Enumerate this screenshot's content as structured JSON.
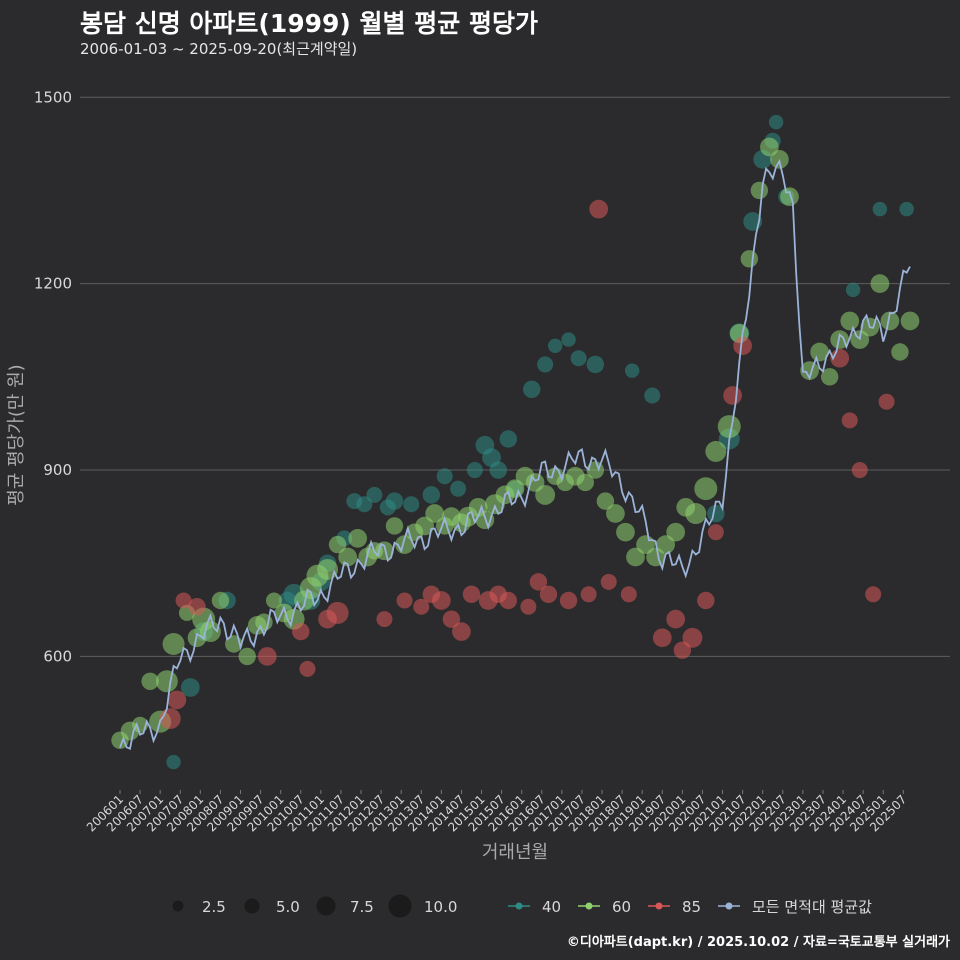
{
  "title": "봉담 신명 아파트(1999) 월별 평균 평당가",
  "subtitle": "2006-01-03 ~ 2025-09-20(최근계약일)",
  "caption": "©디아파트(dapt.kr) / 2025.10.02 / 자료=국토교통부 실거래가",
  "colors": {
    "background": "#2b2b2d",
    "grid": "#5e5e5e",
    "area_40": "#2e8b84",
    "area_60": "#8fd16f",
    "area_85": "#d95757",
    "average_line": "#9bb3d8"
  },
  "chart_data": {
    "type": "scatter",
    "xlabel": "거래년월",
    "ylabel": "평균 평당가(만 원)",
    "ylim": [
      385,
      1560
    ],
    "yticks": [
      600,
      900,
      1200,
      1500
    ],
    "x_start": "200601",
    "x_end": "202509",
    "x_tick_labels": [
      "200601",
      "200607",
      "200701",
      "200707",
      "200801",
      "200807",
      "200901",
      "200907",
      "201001",
      "201007",
      "201101",
      "201107",
      "201201",
      "201207",
      "201301",
      "201307",
      "201401",
      "201407",
      "201501",
      "201507",
      "201601",
      "201607",
      "201701",
      "201707",
      "201801",
      "201807",
      "201901",
      "201907",
      "202001",
      "202007",
      "202101",
      "202107",
      "202201",
      "202207",
      "202301",
      "202307",
      "202401",
      "202407",
      "202501",
      "202507"
    ],
    "size_legend": {
      "title": "",
      "values": [
        "2.5",
        "5.0",
        "7.5",
        "10.0"
      ]
    },
    "color_legend": [
      {
        "name": "40",
        "color": "#2e8b84"
      },
      {
        "name": "60",
        "color": "#8fd16f"
      },
      {
        "name": "85",
        "color": "#d95757"
      },
      {
        "name": "모든 면적대 평균값",
        "color": "#9bb3d8"
      }
    ],
    "average_line_anchors": [
      [
        "200601",
        460
      ],
      [
        "200701",
        490
      ],
      [
        "200707",
        600
      ],
      [
        "200801",
        630
      ],
      [
        "200807",
        660
      ],
      [
        "200901",
        620
      ],
      [
        "200907",
        645
      ],
      [
        "201001",
        665
      ],
      [
        "201007",
        680
      ],
      [
        "201101",
        700
      ],
      [
        "201107",
        730
      ],
      [
        "201201",
        755
      ],
      [
        "201207",
        770
      ],
      [
        "201301",
        780
      ],
      [
        "201307",
        790
      ],
      [
        "201401",
        800
      ],
      [
        "201407",
        810
      ],
      [
        "201501",
        825
      ],
      [
        "201507",
        840
      ],
      [
        "201601",
        860
      ],
      [
        "201607",
        895
      ],
      [
        "201701",
        905
      ],
      [
        "201707",
        920
      ],
      [
        "201801",
        915
      ],
      [
        "201807",
        880
      ],
      [
        "201901",
        820
      ],
      [
        "201907",
        760
      ],
      [
        "202001",
        740
      ],
      [
        "202007",
        790
      ],
      [
        "202101",
        860
      ],
      [
        "202107",
        1100
      ],
      [
        "202201",
        1370
      ],
      [
        "202207",
        1380
      ],
      [
        "202210",
        1330
      ],
      [
        "202301",
        1040
      ],
      [
        "202307",
        1080
      ],
      [
        "202401",
        1100
      ],
      [
        "202407",
        1140
      ],
      [
        "202501",
        1120
      ],
      [
        "202509",
        1230
      ]
    ],
    "series": [
      {
        "name": "40",
        "points": [
          [
            "200705",
            430,
            3
          ],
          [
            "200710",
            550,
            6
          ],
          [
            "200802",
            640,
            6
          ],
          [
            "200809",
            690,
            5
          ],
          [
            "201003",
            690,
            5
          ],
          [
            "201005",
            700,
            8
          ],
          [
            "201010",
            690,
            6
          ],
          [
            "201101",
            720,
            6
          ],
          [
            "201103",
            750,
            5
          ],
          [
            "201108",
            790,
            4
          ],
          [
            "201111",
            850,
            4
          ],
          [
            "201202",
            845,
            4
          ],
          [
            "201205",
            860,
            4
          ],
          [
            "201209",
            840,
            4
          ],
          [
            "201211",
            850,
            5
          ],
          [
            "201304",
            845,
            4
          ],
          [
            "201310",
            860,
            5
          ],
          [
            "201402",
            890,
            4
          ],
          [
            "201406",
            870,
            4
          ],
          [
            "201411",
            900,
            4
          ],
          [
            "201502",
            940,
            6
          ],
          [
            "201504",
            920,
            6
          ],
          [
            "201506",
            900,
            5
          ],
          [
            "201509",
            950,
            5
          ],
          [
            "201511",
            870,
            4
          ],
          [
            "201604",
            1030,
            5
          ],
          [
            "201608",
            1070,
            4
          ],
          [
            "201611",
            1100,
            3
          ],
          [
            "201703",
            1110,
            3
          ],
          [
            "201706",
            1080,
            4
          ],
          [
            "201711",
            1070,
            5
          ],
          [
            "201810",
            1060,
            3
          ],
          [
            "201904",
            1020,
            4
          ],
          [
            "202011",
            830,
            5
          ],
          [
            "202103",
            950,
            8
          ],
          [
            "202106",
            1120,
            7
          ],
          [
            "202110",
            1300,
            6
          ],
          [
            "202201",
            1400,
            6
          ],
          [
            "202204",
            1430,
            4
          ],
          [
            "202205",
            1460,
            3
          ],
          [
            "202208",
            1340,
            4
          ],
          [
            "202404",
            1190,
            3
          ],
          [
            "202412",
            1320,
            3
          ],
          [
            "202508",
            1320,
            3
          ]
        ]
      },
      {
        "name": "60",
        "points": [
          [
            "200601",
            465,
            5
          ],
          [
            "200604",
            480,
            6
          ],
          [
            "200607",
            490,
            4
          ],
          [
            "200610",
            560,
            5
          ],
          [
            "200701",
            495,
            9
          ],
          [
            "200703",
            560,
            9
          ],
          [
            "200705",
            620,
            9
          ],
          [
            "200709",
            670,
            4
          ],
          [
            "200712",
            630,
            6
          ],
          [
            "200802",
            660,
            10
          ],
          [
            "200804",
            640,
            8
          ],
          [
            "200807",
            690,
            5
          ],
          [
            "200811",
            620,
            5
          ],
          [
            "200903",
            600,
            5
          ],
          [
            "200906",
            650,
            6
          ],
          [
            "200908",
            655,
            5
          ],
          [
            "200911",
            690,
            4
          ],
          [
            "201002",
            670,
            6
          ],
          [
            "201005",
            660,
            8
          ],
          [
            "201008",
            690,
            7
          ],
          [
            "201010",
            710,
            9
          ],
          [
            "201012",
            730,
            9
          ],
          [
            "201103",
            740,
            8
          ],
          [
            "201106",
            780,
            5
          ],
          [
            "201109",
            760,
            6
          ],
          [
            "201112",
            790,
            6
          ],
          [
            "201203",
            760,
            6
          ],
          [
            "201205",
            770,
            5
          ],
          [
            "201208",
            770,
            6
          ],
          [
            "201211",
            810,
            5
          ],
          [
            "201302",
            780,
            6
          ],
          [
            "201305",
            800,
            5
          ],
          [
            "201308",
            810,
            6
          ],
          [
            "201311",
            830,
            6
          ],
          [
            "201402",
            810,
            5
          ],
          [
            "201404",
            825,
            6
          ],
          [
            "201407",
            815,
            6
          ],
          [
            "201409",
            825,
            7
          ],
          [
            "201412",
            840,
            6
          ],
          [
            "201502",
            820,
            6
          ],
          [
            "201505",
            845,
            7
          ],
          [
            "201508",
            860,
            6
          ],
          [
            "201511",
            870,
            6
          ],
          [
            "201602",
            890,
            6
          ],
          [
            "201605",
            880,
            6
          ],
          [
            "201608",
            860,
            7
          ],
          [
            "201611",
            890,
            5
          ],
          [
            "201702",
            880,
            5
          ],
          [
            "201705",
            890,
            6
          ],
          [
            "201708",
            880,
            5
          ],
          [
            "201711",
            900,
            5
          ],
          [
            "201802",
            850,
            5
          ],
          [
            "201805",
            830,
            6
          ],
          [
            "201808",
            800,
            6
          ],
          [
            "201811",
            760,
            6
          ],
          [
            "201902",
            780,
            6
          ],
          [
            "201905",
            760,
            6
          ],
          [
            "201908",
            780,
            6
          ],
          [
            "201911",
            800,
            6
          ],
          [
            "202002",
            840,
            6
          ],
          [
            "202005",
            830,
            8
          ],
          [
            "202008",
            870,
            10
          ],
          [
            "202011",
            930,
            8
          ],
          [
            "202103",
            970,
            10
          ],
          [
            "202106",
            1120,
            6
          ],
          [
            "202109",
            1240,
            5
          ],
          [
            "202112",
            1350,
            5
          ],
          [
            "202203",
            1420,
            6
          ],
          [
            "202206",
            1400,
            6
          ],
          [
            "202209",
            1340,
            6
          ],
          [
            "202303",
            1060,
            6
          ],
          [
            "202306",
            1090,
            6
          ],
          [
            "202309",
            1050,
            5
          ],
          [
            "202312",
            1110,
            6
          ],
          [
            "202403",
            1140,
            6
          ],
          [
            "202406",
            1110,
            6
          ],
          [
            "202409",
            1130,
            6
          ],
          [
            "202412",
            1200,
            6
          ],
          [
            "202503",
            1140,
            6
          ],
          [
            "202506",
            1090,
            5
          ],
          [
            "202509",
            1140,
            6
          ]
        ]
      },
      {
        "name": "85",
        "points": [
          [
            "200704",
            500,
            8
          ],
          [
            "200706",
            530,
            6
          ],
          [
            "200708",
            690,
            4
          ],
          [
            "200712",
            680,
            5
          ],
          [
            "200909",
            600,
            6
          ],
          [
            "201007",
            640,
            5
          ],
          [
            "201009",
            580,
            4
          ],
          [
            "201103",
            660,
            6
          ],
          [
            "201106",
            670,
            9
          ],
          [
            "201208",
            660,
            4
          ],
          [
            "201302",
            690,
            4
          ],
          [
            "201307",
            680,
            4
          ],
          [
            "201310",
            700,
            5
          ],
          [
            "201401",
            690,
            6
          ],
          [
            "201404",
            660,
            5
          ],
          [
            "201407",
            640,
            6
          ],
          [
            "201410",
            700,
            5
          ],
          [
            "201503",
            690,
            6
          ],
          [
            "201506",
            700,
            5
          ],
          [
            "201509",
            690,
            5
          ],
          [
            "201603",
            680,
            4
          ],
          [
            "201606",
            720,
            5
          ],
          [
            "201609",
            700,
            5
          ],
          [
            "201703",
            690,
            5
          ],
          [
            "201709",
            700,
            4
          ],
          [
            "201712",
            1320,
            6
          ],
          [
            "201803",
            720,
            4
          ],
          [
            "201809",
            700,
            4
          ],
          [
            "201907",
            630,
            6
          ],
          [
            "201911",
            660,
            6
          ],
          [
            "202001",
            610,
            5
          ],
          [
            "202004",
            630,
            7
          ],
          [
            "202008",
            690,
            5
          ],
          [
            "202011",
            800,
            4
          ],
          [
            "202104",
            1020,
            6
          ],
          [
            "202107",
            1100,
            6
          ],
          [
            "202312",
            1080,
            6
          ],
          [
            "202403",
            980,
            4
          ],
          [
            "202406",
            900,
            4
          ],
          [
            "202410",
            700,
            4
          ],
          [
            "202502",
            1010,
            4
          ]
        ]
      }
    ]
  }
}
